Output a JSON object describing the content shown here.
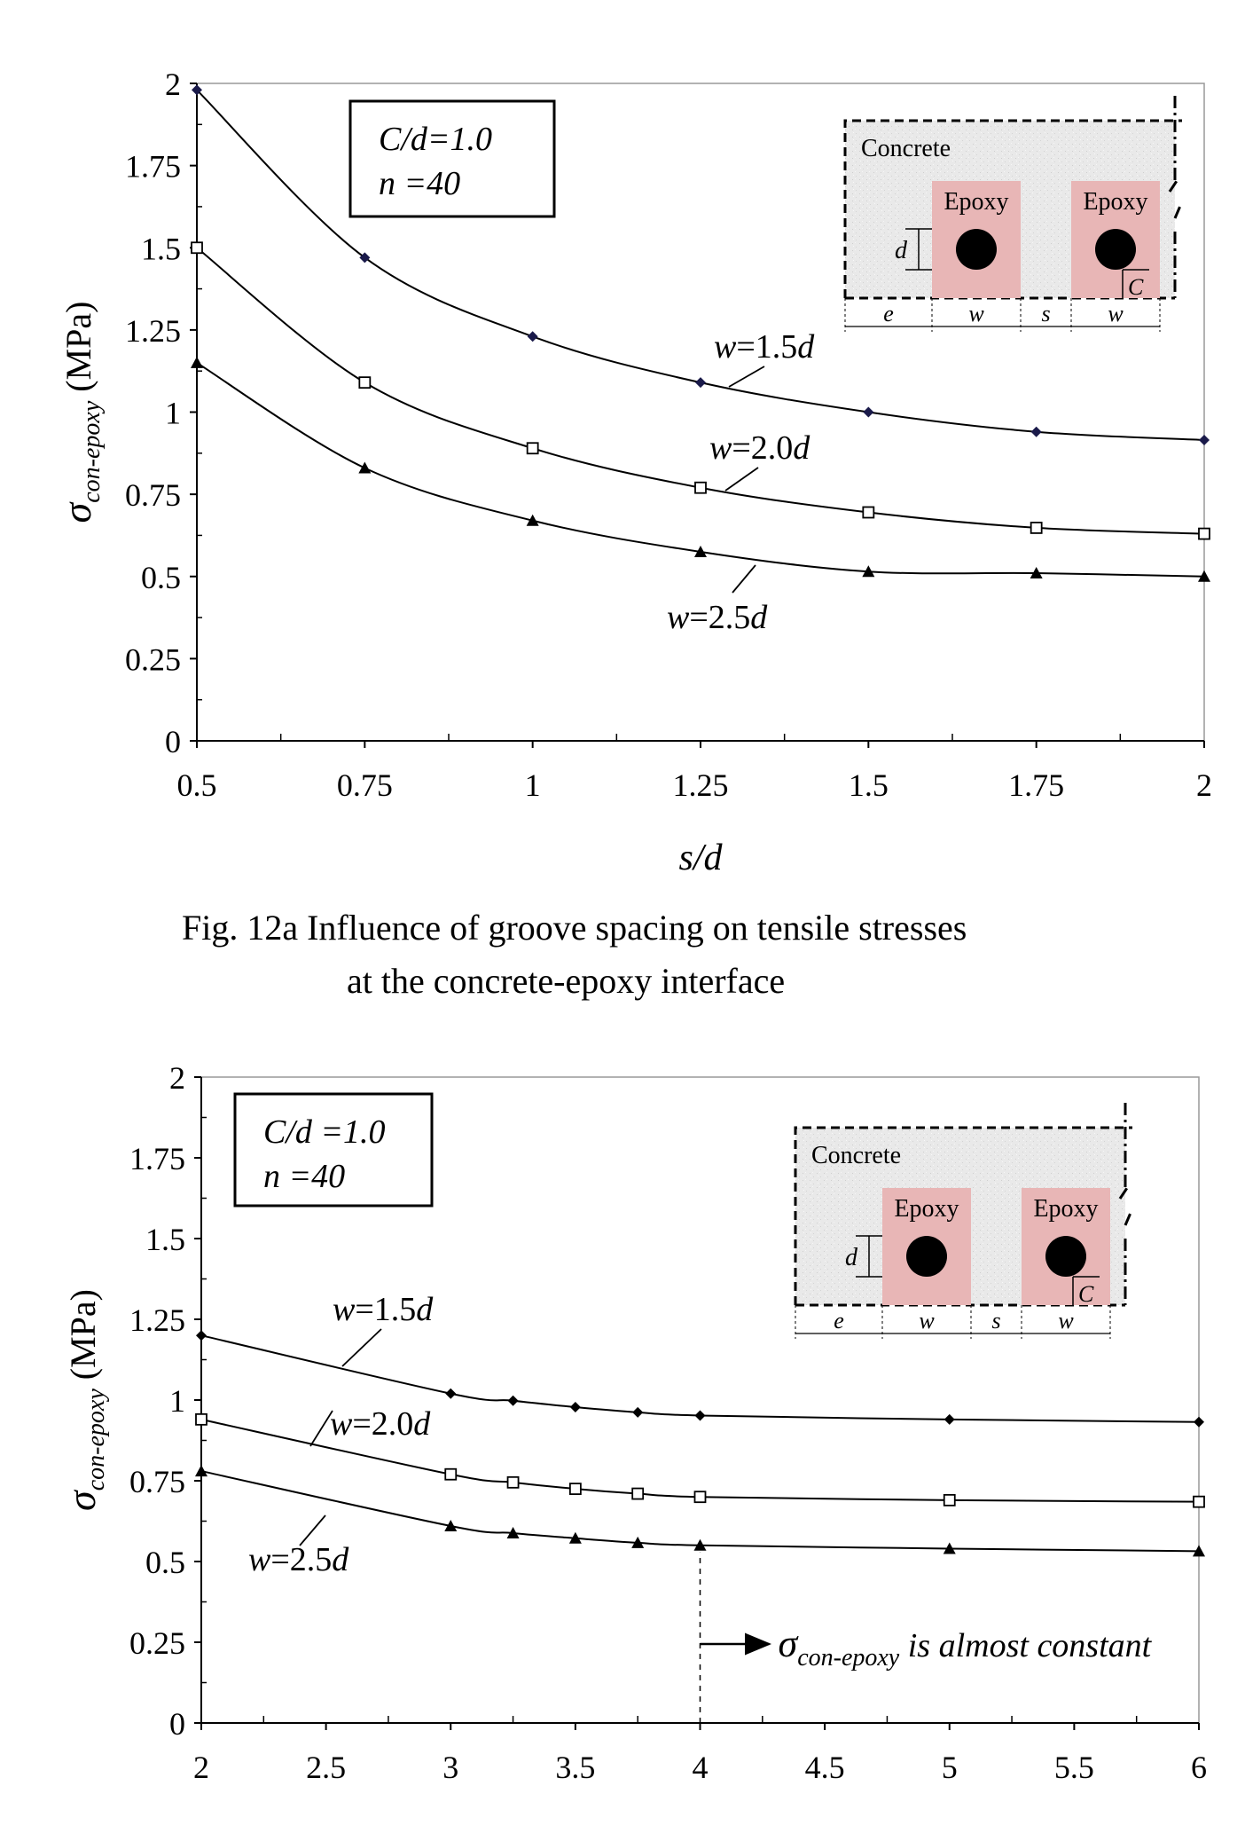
{
  "figure_a": {
    "caption_line1": "Fig. 12a Influence of groove spacing on tensile stresses",
    "caption_line2": "at the concrete-epoxy interface"
  },
  "chart_data": [
    {
      "type": "line",
      "xlabel": "s/d",
      "ylabel": "σ con-epoxy (MPa)",
      "xlim": [
        0.5,
        2
      ],
      "ylim": [
        0,
        2
      ],
      "xticks": [
        "0.5",
        "0.75",
        "1",
        "1.25",
        "1.5",
        "1.75",
        "2"
      ],
      "yticks": [
        "0",
        "0.25",
        "0.5",
        "0.75",
        "1",
        "1.25",
        "1.5",
        "1.75",
        "2"
      ],
      "grid": false,
      "legend_box": [
        "C/d=1.0",
        "n    =40"
      ],
      "series": [
        {
          "name": "w=1.5d",
          "marker": "diamond",
          "points": [
            [
              0.5,
              1.98
            ],
            [
              0.75,
              1.47
            ],
            [
              1,
              1.23
            ],
            [
              1.25,
              1.09
            ],
            [
              1.5,
              1.0
            ],
            [
              1.75,
              0.94
            ],
            [
              2,
              0.915
            ]
          ]
        },
        {
          "name": "w=2.0d",
          "marker": "open-square",
          "points": [
            [
              0.5,
              1.5
            ],
            [
              0.75,
              1.09
            ],
            [
              1,
              0.89
            ],
            [
              1.25,
              0.77
            ],
            [
              1.5,
              0.695
            ],
            [
              1.75,
              0.648
            ],
            [
              2,
              0.63
            ]
          ]
        },
        {
          "name": "w=2.5d",
          "marker": "triangle",
          "points": [
            [
              0.5,
              1.15
            ],
            [
              0.75,
              0.83
            ],
            [
              1,
              0.67
            ],
            [
              1.25,
              0.575
            ],
            [
              1.5,
              0.515
            ],
            [
              1.75,
              0.51
            ],
            [
              2,
              0.5
            ]
          ]
        }
      ],
      "inset": {
        "concrete": "Concrete",
        "epoxy": "Epoxy",
        "d": "d",
        "c": "C",
        "e": "e",
        "w": "w",
        "s": "s"
      }
    },
    {
      "type": "line",
      "xlabel": "s/d",
      "ylabel": "σ con-epoxy (MPa)",
      "xlim": [
        2,
        6
      ],
      "ylim": [
        0,
        2
      ],
      "xticks": [
        "2",
        "2.5",
        "3",
        "3.5",
        "4",
        "4.5",
        "5",
        "5.5",
        "6"
      ],
      "yticks": [
        "0",
        "0.25",
        "0.5",
        "0.75",
        "1",
        "1.25",
        "1.5",
        "1.75",
        "2"
      ],
      "grid": false,
      "legend_box": [
        "C/d =1.0",
        "n     =40"
      ],
      "annotation": {
        "x": 4,
        "text_sym": "σ",
        "text_sub": "con-epoxy",
        "text_rest": " is almost constant"
      },
      "series": [
        {
          "name": "w=1.5d",
          "marker": "diamond",
          "points": [
            [
              2,
              1.2
            ],
            [
              3,
              1.02
            ],
            [
              3.25,
              0.998
            ],
            [
              3.5,
              0.978
            ],
            [
              3.75,
              0.962
            ],
            [
              4,
              0.952
            ],
            [
              5,
              0.94
            ],
            [
              6,
              0.932
            ]
          ]
        },
        {
          "name": "w=2.0d",
          "marker": "open-square",
          "points": [
            [
              2,
              0.94
            ],
            [
              3,
              0.77
            ],
            [
              3.25,
              0.745
            ],
            [
              3.5,
              0.725
            ],
            [
              3.75,
              0.71
            ],
            [
              4,
              0.7
            ],
            [
              5,
              0.69
            ],
            [
              6,
              0.685
            ]
          ]
        },
        {
          "name": "w=2.5d",
          "marker": "triangle",
          "points": [
            [
              2,
              0.78
            ],
            [
              3,
              0.61
            ],
            [
              3.25,
              0.588
            ],
            [
              3.5,
              0.572
            ],
            [
              3.75,
              0.558
            ],
            [
              4,
              0.55
            ],
            [
              5,
              0.54
            ],
            [
              6,
              0.532
            ]
          ]
        }
      ],
      "inset": {
        "concrete": "Concrete",
        "epoxy": "Epoxy",
        "d": "d",
        "c": "C",
        "e": "e",
        "w": "w",
        "s": "s"
      }
    }
  ],
  "colors": {
    "axis": "#000000",
    "line": "#000000",
    "epoxy": "#e8b6b6",
    "concrete": "#e8e8e8",
    "bar_dot": "#000000",
    "marker_a": "#1a1a4a"
  }
}
